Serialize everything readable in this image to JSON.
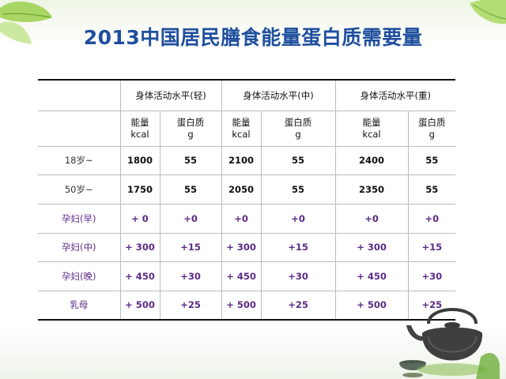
{
  "title": "2013中国居民膳食能量蛋白质需要量",
  "table": {
    "groups": [
      "身体活动水平(轻)",
      "身体活动水平(中)",
      "身体活动水平(重)"
    ],
    "sub_headers": [
      {
        "line1": "能量",
        "line2": "kcal"
      },
      {
        "line1": "蛋白质",
        "line2": "g"
      },
      {
        "line1": "能量",
        "line2": "kcal"
      },
      {
        "line1": "蛋白质",
        "line2": "g"
      },
      {
        "line1": "能量",
        "line2": "kcal"
      },
      {
        "line1": "蛋白质",
        "line2": "g"
      }
    ],
    "rows": [
      {
        "label": "18岁~",
        "values": [
          "1800",
          "55",
          "2100",
          "55",
          "2400",
          "55"
        ]
      },
      {
        "label": "50岁~",
        "values": [
          "1750",
          "55",
          "2050",
          "55",
          "2350",
          "55"
        ]
      },
      {
        "label": "孕妇(早)",
        "values": [
          "+ 0",
          "+0",
          "+0",
          "+0",
          "+0",
          "+0"
        ]
      },
      {
        "label": "孕妇(中)",
        "values": [
          "+ 300",
          "+15",
          "+ 300",
          "+15",
          "+ 300",
          "+15"
        ]
      },
      {
        "label": "孕妇(晚)",
        "values": [
          "+ 450",
          "+30",
          "+ 450",
          "+30",
          "+ 450",
          "+30"
        ]
      },
      {
        "label": "乳母",
        "values": [
          "+ 500",
          "+25",
          "+ 500",
          "+25",
          "+ 500",
          "+25"
        ]
      }
    ]
  },
  "colors": {
    "title": "#1f4f9e",
    "purple_text": "#5c2a86",
    "leaf": "#8cc63f"
  }
}
